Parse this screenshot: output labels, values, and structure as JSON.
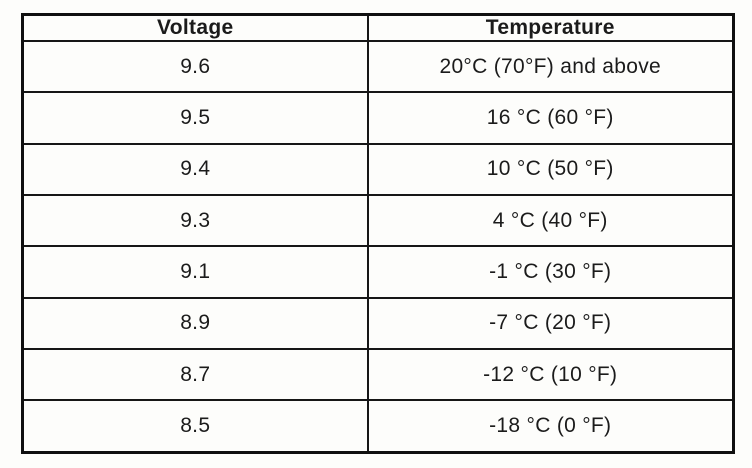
{
  "table": {
    "headers": {
      "voltage": "Voltage",
      "temperature": "Temperature"
    },
    "rows": [
      {
        "voltage": "9.6",
        "temperature": "20°C (70°F) and above"
      },
      {
        "voltage": "9.5",
        "temperature": "16 °C (60 °F)"
      },
      {
        "voltage": "9.4",
        "temperature": "10 °C (50 °F)"
      },
      {
        "voltage": "9.3",
        "temperature": "4 °C (40 °F)"
      },
      {
        "voltage": "9.1",
        "temperature": "-1 °C (30 °F)"
      },
      {
        "voltage": "8.9",
        "temperature": "-7 °C (20 °F)"
      },
      {
        "voltage": "8.7",
        "temperature": "-12 °C (10 °F)"
      },
      {
        "voltage": "8.5",
        "temperature": "-18 °C (0 °F)"
      }
    ]
  }
}
